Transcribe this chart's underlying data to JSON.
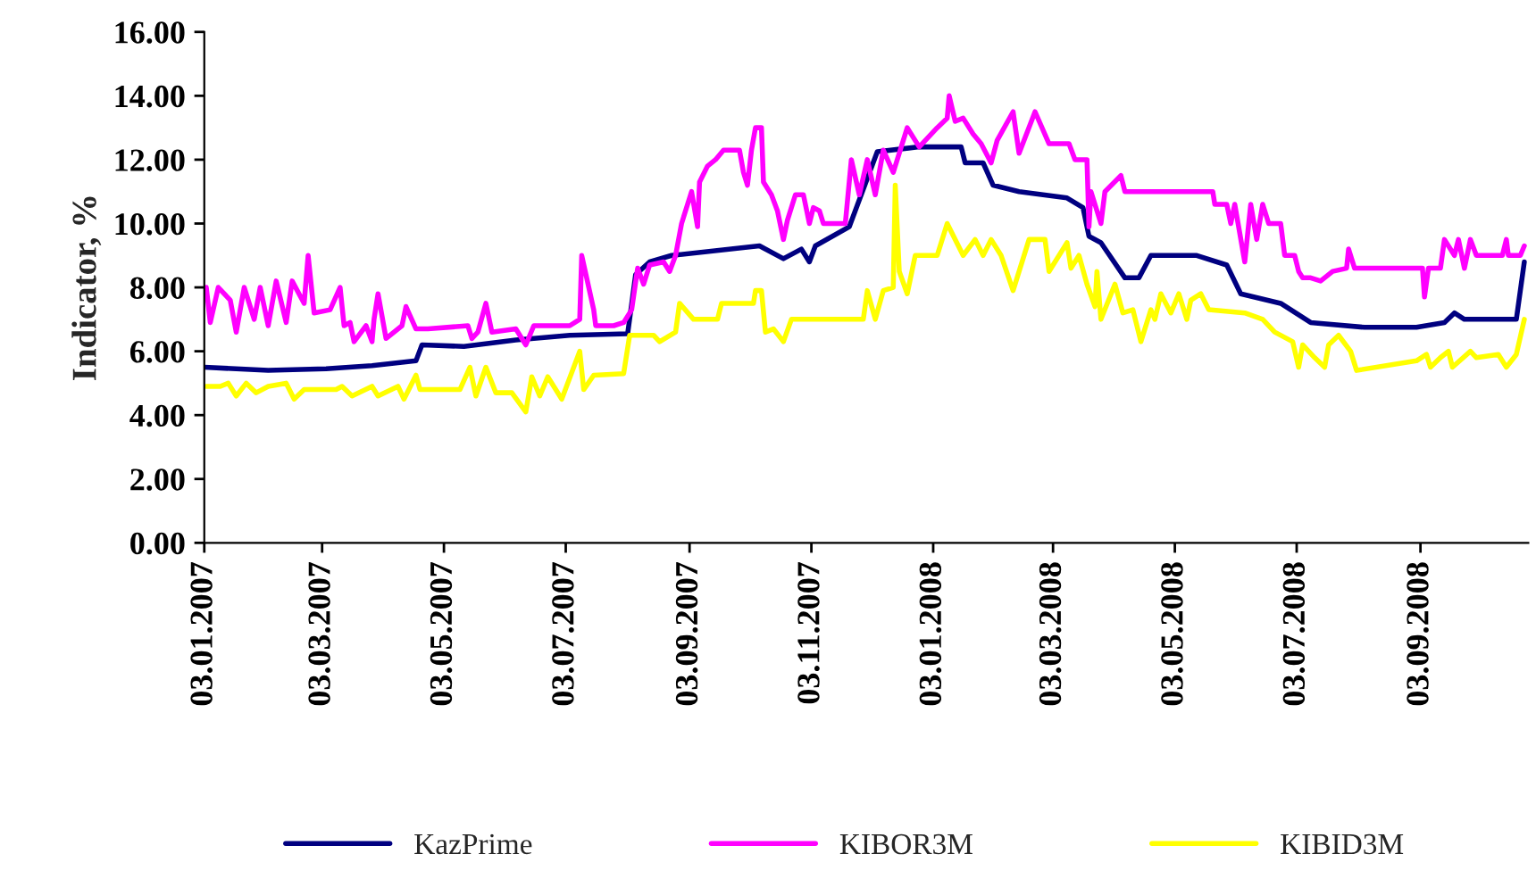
{
  "chart_data": {
    "type": "line",
    "ylabel": "Indicator, %",
    "xlim": [
      "2007-01-03",
      "2008-10-27"
    ],
    "xticks": [
      {
        "value": "2007-01-03",
        "label": "03.01.2007"
      },
      {
        "value": "2007-03-03",
        "label": "03.03.2007"
      },
      {
        "value": "2007-05-03",
        "label": "03.05.2007"
      },
      {
        "value": "2007-07-03",
        "label": "03.07.2007"
      },
      {
        "value": "2007-09-03",
        "label": "03.09.2007"
      },
      {
        "value": "2007-11-03",
        "label": "03.11.2007"
      },
      {
        "value": "2008-01-03",
        "label": "03.01.2008"
      },
      {
        "value": "2008-03-03",
        "label": "03.03.2008"
      },
      {
        "value": "2008-05-03",
        "label": "03.05.2008"
      },
      {
        "value": "2008-07-03",
        "label": "03.07.2008"
      },
      {
        "value": "2008-09-03",
        "label": "03.09.2008"
      }
    ],
    "ylim": [
      0,
      16
    ],
    "yticks": [
      {
        "value": 0,
        "label": "0.00"
      },
      {
        "value": 2,
        "label": "2.00"
      },
      {
        "value": 4,
        "label": "4.00"
      },
      {
        "value": 6,
        "label": "6.00"
      },
      {
        "value": 8,
        "label": "8.00"
      },
      {
        "value": 10,
        "label": "10.00"
      },
      {
        "value": 12,
        "label": "12.00"
      },
      {
        "value": 14,
        "label": "14.00"
      },
      {
        "value": 16,
        "label": "16.00"
      }
    ],
    "grid": false,
    "legend": "bottom",
    "marker": "none",
    "line_style": "solid",
    "series": [
      {
        "name": "KazPrime",
        "color": "#000080",
        "x": [
          "2007-01-03",
          "2007-02-04",
          "2007-03-05",
          "2007-03-28",
          "2007-04-19",
          "2007-04-22",
          "2007-05-13",
          "2007-06-08",
          "2007-07-05",
          "2007-08-03",
          "2007-08-07",
          "2007-08-14",
          "2007-08-25",
          "2007-10-08",
          "2007-10-20",
          "2007-10-29",
          "2007-11-02",
          "2007-11-05",
          "2007-11-22",
          "2007-12-06",
          "2007-12-27",
          "2008-01-17",
          "2008-01-19",
          "2008-01-28",
          "2008-02-02",
          "2008-02-15",
          "2008-03-10",
          "2008-03-18",
          "2008-03-21",
          "2008-03-27",
          "2008-04-08",
          "2008-04-15",
          "2008-04-21",
          "2008-05-14",
          "2008-05-29",
          "2008-06-05",
          "2008-06-25",
          "2008-07-10",
          "2008-08-06",
          "2008-09-01",
          "2008-09-15",
          "2008-09-20",
          "2008-09-25",
          "2008-10-21",
          "2008-10-25"
        ],
        "values": [
          5.5,
          5.4,
          5.45,
          5.55,
          5.7,
          6.2,
          6.15,
          6.35,
          6.5,
          6.55,
          8.4,
          8.8,
          9.0,
          9.3,
          8.9,
          9.2,
          8.8,
          9.3,
          9.9,
          12.25,
          12.4,
          12.4,
          11.9,
          11.9,
          11.2,
          11.0,
          10.8,
          10.5,
          9.6,
          9.4,
          8.3,
          8.3,
          9.0,
          9.0,
          8.7,
          7.8,
          7.5,
          6.9,
          6.75,
          6.75,
          6.9,
          7.2,
          7.0,
          7.0,
          8.8
        ]
      },
      {
        "name": "KIBOR3M",
        "color": "#ff00ff",
        "x": [
          "2007-01-04",
          "2007-01-06",
          "2007-01-10",
          "2007-01-16",
          "2007-01-19",
          "2007-01-23",
          "2007-01-28",
          "2007-01-31",
          "2007-02-04",
          "2007-02-08",
          "2007-02-13",
          "2007-02-16",
          "2007-02-22",
          "2007-02-24",
          "2007-02-27",
          "2007-03-07",
          "2007-03-12",
          "2007-03-14",
          "2007-03-17",
          "2007-03-19",
          "2007-03-25",
          "2007-03-28",
          "2007-03-29",
          "2007-03-31",
          "2007-04-04",
          "2007-04-12",
          "2007-04-14",
          "2007-04-19",
          "2007-04-25",
          "2007-05-15",
          "2007-05-17",
          "2007-05-20",
          "2007-05-24",
          "2007-05-27",
          "2007-06-08",
          "2007-06-13",
          "2007-06-17",
          "2007-07-05",
          "2007-07-10",
          "2007-07-11",
          "2007-07-17",
          "2007-07-18",
          "2007-07-27",
          "2007-08-01",
          "2007-08-03",
          "2007-08-05",
          "2007-08-08",
          "2007-08-11",
          "2007-08-14",
          "2007-08-21",
          "2007-08-24",
          "2007-08-27",
          "2007-08-30",
          "2007-09-04",
          "2007-09-07",
          "2007-09-08",
          "2007-09-12",
          "2007-09-16",
          "2007-09-20",
          "2007-09-28",
          "2007-09-30",
          "2007-10-02",
          "2007-10-04",
          "2007-10-06",
          "2007-10-09",
          "2007-10-10",
          "2007-10-14",
          "2007-10-17",
          "2007-10-20",
          "2007-10-22",
          "2007-10-26",
          "2007-10-30",
          "2007-11-02",
          "2007-11-04",
          "2007-11-07",
          "2007-11-09",
          "2007-11-20",
          "2007-11-23",
          "2007-11-27",
          "2007-12-01",
          "2007-12-05",
          "2007-12-09",
          "2007-12-14",
          "2007-12-21",
          "2007-12-27",
          "2008-01-05",
          "2008-01-10",
          "2008-01-11",
          "2008-01-14",
          "2008-01-18",
          "2008-01-23",
          "2008-01-27",
          "2008-02-01",
          "2008-02-04",
          "2008-02-12",
          "2008-02-15",
          "2008-02-23",
          "2008-03-01",
          "2008-03-11",
          "2008-03-14",
          "2008-03-20",
          "2008-03-21",
          "2008-03-22",
          "2008-03-27",
          "2008-03-29",
          "2008-04-06",
          "2008-04-08",
          "2008-05-22",
          "2008-05-23",
          "2008-05-29",
          "2008-05-31",
          "2008-06-02",
          "2008-06-07",
          "2008-06-10",
          "2008-06-13",
          "2008-06-16",
          "2008-06-19",
          "2008-06-25",
          "2008-06-27",
          "2008-07-02",
          "2008-07-04",
          "2008-07-06",
          "2008-07-10",
          "2008-07-15",
          "2008-07-21",
          "2008-07-28",
          "2008-07-29",
          "2008-08-01",
          "2008-09-04",
          "2008-09-05",
          "2008-09-07",
          "2008-09-13",
          "2008-09-14",
          "2008-09-15",
          "2008-09-20",
          "2008-09-22",
          "2008-09-25",
          "2008-09-28",
          "2008-10-01",
          "2008-10-14",
          "2008-10-16",
          "2008-10-17",
          "2008-10-23",
          "2008-10-25"
        ],
        "values": [
          8.0,
          6.9,
          8.0,
          7.6,
          6.6,
          8.0,
          7.0,
          8.0,
          6.8,
          8.2,
          6.9,
          8.2,
          7.5,
          9.0,
          7.2,
          7.3,
          8.0,
          6.8,
          6.9,
          6.3,
          6.8,
          6.3,
          7.0,
          7.8,
          6.4,
          6.8,
          7.4,
          6.7,
          6.7,
          6.8,
          6.4,
          6.6,
          7.5,
          6.6,
          6.7,
          6.2,
          6.8,
          6.8,
          7.0,
          9.0,
          7.3,
          6.8,
          6.8,
          6.9,
          null,
          7.3,
          8.6,
          8.1,
          8.7,
          8.8,
          8.5,
          9.0,
          10.0,
          11.0,
          9.9,
          11.3,
          11.8,
          12.0,
          12.3,
          12.3,
          11.6,
          11.2,
          12.3,
          13.0,
          13.0,
          11.3,
          10.9,
          10.4,
          9.5,
          10.1,
          10.9,
          10.9,
          10.0,
          10.5,
          10.4,
          10.0,
          10.0,
          12.0,
          10.9,
          12.0,
          10.9,
          12.3,
          11.6,
          13.0,
          12.4,
          13.0,
          13.3,
          14.0,
          13.2,
          13.3,
          12.8,
          12.5,
          11.9,
          12.6,
          13.5,
          12.2,
          13.5,
          12.5,
          12.5,
          12.0,
          12.0,
          9.9,
          11.0,
          10.0,
          11.0,
          11.5,
          11.0,
          11.0,
          10.6,
          10.6,
          10.0,
          10.6,
          8.8,
          10.6,
          9.5,
          10.6,
          10.0,
          10.0,
          9.0,
          9.0,
          8.5,
          8.3,
          8.3,
          8.2,
          8.5,
          8.6,
          9.2,
          8.6,
          8.6,
          7.7,
          8.6,
          8.6,
          null,
          9.5,
          9.0,
          9.5,
          8.6,
          9.5,
          9.0,
          9.0,
          9.5,
          9.0,
          9.0,
          9.3
        ]
      },
      {
        "name": "KIBID3M",
        "color": "#ffff00",
        "x": [
          "2007-01-04",
          "2007-01-11",
          "2007-01-15",
          "2007-01-19",
          "2007-01-24",
          "2007-01-29",
          "2007-02-04",
          "2007-02-13",
          "2007-02-17",
          "2007-02-22",
          "2007-03-10",
          "2007-03-13",
          "2007-03-18",
          "2007-03-28",
          "2007-03-31",
          "2007-04-10",
          "2007-04-13",
          "2007-04-19",
          "2007-04-21",
          "2007-05-11",
          "2007-05-16",
          "2007-05-19",
          "2007-05-24",
          "2007-05-29",
          "2007-06-06",
          "2007-06-13",
          "2007-06-16",
          "2007-06-20",
          "2007-06-24",
          "2007-07-01",
          "2007-07-10",
          "2007-07-12",
          "2007-07-17",
          "2007-08-01",
          "2007-08-04",
          "2007-08-16",
          "2007-08-19",
          "2007-08-27",
          "2007-08-29",
          "2007-09-05",
          "2007-09-17",
          "2007-09-19",
          "2007-10-05",
          "2007-10-06",
          "2007-10-09",
          "2007-10-11",
          "2007-10-15",
          "2007-10-20",
          "2007-10-24",
          "2007-11-29",
          "2007-12-01",
          "2007-12-05",
          "2007-12-09",
          "2007-12-14",
          "2007-12-15",
          "2007-12-17",
          "2007-12-21",
          "2007-12-25",
          "2008-01-05",
          "2008-01-10",
          "2008-01-18",
          "2008-01-24",
          "2008-01-28",
          "2008-02-01",
          "2008-02-06",
          "2008-02-12",
          "2008-02-20",
          "2008-02-28",
          "2008-03-01",
          "2008-03-10",
          "2008-03-12",
          "2008-03-16",
          "2008-03-20",
          "2008-03-24",
          "2008-03-25",
          "2008-03-27",
          "2008-04-03",
          "2008-04-07",
          "2008-04-12",
          "2008-04-16",
          "2008-04-21",
          "2008-04-23",
          "2008-04-26",
          "2008-05-01",
          "2008-05-05",
          "2008-05-09",
          "2008-05-11",
          "2008-05-16",
          "2008-05-20",
          "2008-06-07",
          "2008-06-16",
          "2008-06-22",
          "2008-07-01",
          "2008-07-04",
          "2008-07-06",
          "2008-07-12",
          "2008-07-17",
          "2008-07-19",
          "2008-07-24",
          "2008-07-30",
          "2008-07-31",
          "2008-08-02",
          "2008-09-01",
          "2008-09-06",
          "2008-09-08",
          "2008-09-13",
          "2008-09-15",
          "2008-09-17",
          "2008-09-19",
          "2008-09-28",
          "2008-10-01",
          "2008-10-12",
          "2008-10-16",
          "2008-10-21",
          "2008-10-25"
        ],
        "values": [
          4.9,
          4.9,
          5.0,
          4.6,
          5.0,
          4.7,
          4.9,
          5.0,
          4.5,
          4.8,
          4.8,
          4.9,
          4.6,
          4.9,
          4.6,
          4.9,
          4.5,
          5.25,
          4.8,
          4.8,
          5.5,
          4.6,
          5.5,
          4.7,
          4.7,
          4.1,
          5.2,
          4.6,
          5.2,
          4.5,
          6.0,
          4.8,
          5.25,
          5.3,
          6.5,
          6.5,
          6.3,
          6.6,
          7.5,
          7.0,
          7.0,
          7.5,
          7.5,
          7.9,
          7.9,
          6.6,
          6.7,
          6.3,
          7.0,
          7.0,
          7.9,
          7.0,
          7.9,
          8.0,
          11.2,
          8.5,
          7.8,
          9.0,
          9.0,
          10.0,
          9.0,
          9.5,
          9.0,
          9.5,
          9.0,
          7.9,
          9.5,
          9.5,
          8.5,
          9.4,
          8.6,
          9.0,
          8.1,
          7.4,
          8.5,
          7.0,
          8.1,
          7.2,
          7.3,
          6.3,
          7.3,
          7.0,
          7.8,
          7.2,
          7.8,
          7.0,
          7.6,
          7.8,
          7.3,
          7.2,
          7.0,
          6.6,
          6.3,
          5.5,
          6.2,
          5.8,
          5.5,
          6.2,
          6.5,
          6.0,
          null,
          5.4,
          5.7,
          5.9,
          5.5,
          5.8,
          null,
          6.0,
          5.5,
          6.0,
          5.8,
          5.9,
          5.5,
          5.9,
          7.0
        ]
      }
    ]
  }
}
